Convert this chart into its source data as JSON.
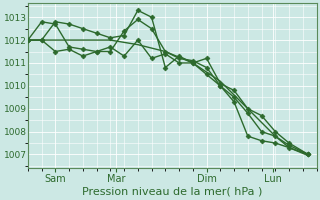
{
  "background_color": "#cce8e4",
  "grid_color": "#ffffff",
  "line_color": "#2d6a2d",
  "marker_color": "#2d6a2d",
  "xlabel": "Pression niveau de la mer( hPa )",
  "xlabel_fontsize": 8,
  "yticks": [
    1007,
    1008,
    1009,
    1010,
    1011,
    1012,
    1013
  ],
  "ylim": [
    1006.4,
    1013.6
  ],
  "xtick_labels": [
    "Sam",
    "Mar",
    "Dim",
    "Lun"
  ],
  "xlim": [
    0,
    10.5
  ],
  "series": [
    {
      "x": [
        0.0,
        0.5,
        1.0,
        2.0,
        3.0,
        4.0,
        5.0,
        6.0,
        7.0,
        8.0,
        9.0,
        9.5,
        10.2
      ],
      "y": [
        1012.0,
        1012.0,
        1012.0,
        1012.0,
        1012.0,
        1011.8,
        1011.5,
        1011.0,
        1010.2,
        1009.0,
        1007.8,
        1007.3,
        1006.95
      ],
      "marker": null,
      "lw": 1.0
    },
    {
      "x": [
        0.0,
        0.5,
        1.0,
        1.5,
        2.0,
        2.5,
        3.0,
        3.5,
        4.0,
        4.5,
        5.0,
        5.5,
        6.0,
        6.5,
        7.0,
        7.5,
        8.0,
        8.5,
        9.0,
        9.5,
        10.2
      ],
      "y": [
        1012.0,
        1012.0,
        1012.8,
        1012.7,
        1012.5,
        1012.3,
        1012.1,
        1012.2,
        1013.3,
        1013.0,
        1010.8,
        1011.3,
        1011.0,
        1011.2,
        1010.1,
        1009.8,
        1009.0,
        1008.7,
        1008.0,
        1007.5,
        1007.0
      ],
      "marker": "D",
      "lw": 1.0
    },
    {
      "x": [
        0.0,
        0.5,
        1.0,
        1.5,
        2.0,
        2.5,
        3.0,
        3.5,
        4.0,
        4.5,
        5.0,
        5.5,
        6.0,
        6.5,
        7.0,
        7.5,
        8.0,
        8.5,
        9.0,
        9.5,
        10.2
      ],
      "y": [
        1012.0,
        1012.8,
        1012.7,
        1011.7,
        1011.6,
        1011.5,
        1011.5,
        1012.4,
        1012.9,
        1012.5,
        1011.5,
        1011.2,
        1011.1,
        1010.8,
        1010.0,
        1009.5,
        1008.8,
        1008.0,
        1007.8,
        1007.4,
        1007.0
      ],
      "marker": "D",
      "lw": 1.0
    },
    {
      "x": [
        0.0,
        0.5,
        1.0,
        1.5,
        2.0,
        2.5,
        3.0,
        3.5,
        4.0,
        4.5,
        5.0,
        5.5,
        6.0,
        6.5,
        7.0,
        7.5,
        8.0,
        8.5,
        9.0,
        9.5,
        10.2
      ],
      "y": [
        1012.0,
        1012.0,
        1011.5,
        1011.6,
        1011.3,
        1011.5,
        1011.7,
        1011.3,
        1012.0,
        1011.2,
        1011.4,
        1011.0,
        1011.0,
        1010.5,
        1010.0,
        1009.3,
        1007.8,
        1007.6,
        1007.5,
        1007.3,
        1007.0
      ],
      "marker": "D",
      "lw": 1.0
    }
  ],
  "xtick_data": [
    {
      "label": "Sam",
      "x": 1.0
    },
    {
      "label": "Mar",
      "x": 3.2
    },
    {
      "label": "Dim",
      "x": 6.5
    },
    {
      "label": "Lun",
      "x": 8.9
    }
  ]
}
